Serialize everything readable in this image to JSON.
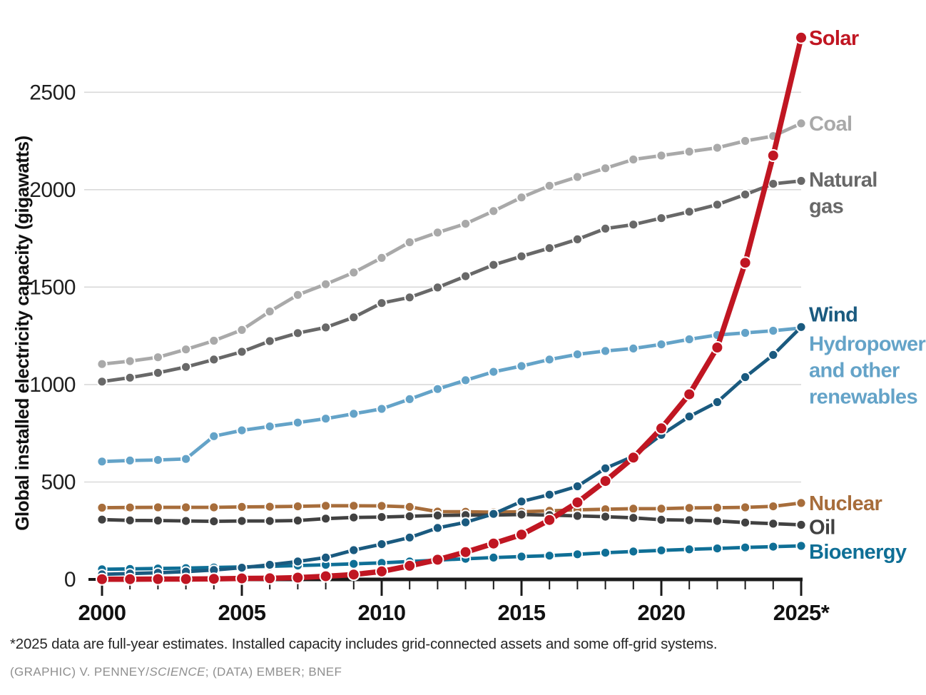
{
  "footnote": "*2025 data are full-year estimates. Installed capacity includes grid-connected assets and some off-grid systems.",
  "credit": {
    "prefix": "(GRAPHIC) V. PENNEY/",
    "italic": "SCIENCE",
    "suffix": "; (DATA) EMBER; BNEF"
  },
  "chart_data": {
    "type": "line",
    "title": "",
    "xlabel": "",
    "ylabel": "Global installed electricity capacity (gigawatts)",
    "x": [
      2000,
      2001,
      2002,
      2003,
      2004,
      2005,
      2006,
      2007,
      2008,
      2009,
      2010,
      2011,
      2012,
      2013,
      2014,
      2015,
      2016,
      2017,
      2018,
      2019,
      2020,
      2021,
      2022,
      2023,
      2024,
      2025
    ],
    "x_major_ticks": [
      2000,
      2005,
      2010,
      2015,
      2020,
      2025
    ],
    "x_major_tick_labels": [
      "2000",
      "2005",
      "2010",
      "2015",
      "2020",
      "2025*"
    ],
    "y_ticks": [
      0,
      500,
      1000,
      1500,
      2000,
      2500
    ],
    "ylim": [
      0,
      2850
    ],
    "grid": "horizontal-only",
    "legend_position": "right-of-line-ends",
    "units": "gigawatts",
    "axis_color": "#1a1a1a",
    "gridline_color": "#d9d9d9",
    "series": [
      {
        "name": "Coal",
        "color": "#a9a9a9",
        "label_lines": [
          "Coal"
        ],
        "label_dy": 10,
        "values": [
          1105,
          1120,
          1140,
          1180,
          1225,
          1280,
          1375,
          1460,
          1515,
          1575,
          1650,
          1730,
          1780,
          1825,
          1890,
          1960,
          2020,
          2065,
          2110,
          2155,
          2175,
          2195,
          2215,
          2250,
          2275,
          2340
        ]
      },
      {
        "name": "Natural gas",
        "color": "#686868",
        "label_lines": [
          "Natural",
          "gas"
        ],
        "label_dy": 8,
        "values": [
          1015,
          1035,
          1060,
          1090,
          1128,
          1168,
          1223,
          1264,
          1293,
          1345,
          1418,
          1447,
          1498,
          1556,
          1614,
          1658,
          1700,
          1745,
          1800,
          1821,
          1854,
          1887,
          1923,
          1975,
          2030,
          2045
        ]
      },
      {
        "name": "Hydropower and other renewables",
        "color": "#64a3c8",
        "label_lines": [
          "Hydropower",
          "and other",
          "renewables"
        ],
        "label_dy": 32,
        "values": [
          605,
          610,
          613,
          618,
          735,
          765,
          785,
          805,
          825,
          850,
          875,
          925,
          977,
          1022,
          1065,
          1095,
          1128,
          1155,
          1172,
          1185,
          1206,
          1232,
          1254,
          1265,
          1276,
          1290
        ]
      },
      {
        "name": "Nuclear",
        "color": "#a76d3b",
        "label_lines": [
          "Nuclear"
        ],
        "label_dy": 10,
        "values": [
          368,
          369,
          370,
          370,
          370,
          372,
          373,
          375,
          378,
          378,
          377,
          372,
          348,
          347,
          345,
          347,
          352,
          357,
          360,
          363,
          363,
          367,
          368,
          370,
          375,
          392
        ]
      },
      {
        "name": "Oil",
        "color": "#414141",
        "label_lines": [
          "Oil"
        ],
        "label_dy": 13,
        "values": [
          307,
          303,
          302,
          300,
          298,
          300,
          300,
          302,
          312,
          318,
          320,
          324,
          328,
          330,
          330,
          333,
          330,
          326,
          322,
          316,
          306,
          304,
          300,
          292,
          286,
          280
        ]
      },
      {
        "name": "Bioenergy",
        "color": "#0f6f96",
        "label_lines": [
          "Bioenergy"
        ],
        "label_dy": 18,
        "values": [
          52,
          54,
          56,
          58,
          61,
          64,
          67,
          71,
          75,
          80,
          85,
          92,
          99,
          106,
          112,
          117,
          122,
          129,
          137,
          143,
          149,
          154,
          159,
          164,
          168,
          172
        ]
      },
      {
        "name": "Wind",
        "color": "#1a5a7f",
        "label_lines": [
          "Wind"
        ],
        "label_dy": -8,
        "values": [
          26,
          30,
          34,
          40,
          48,
          60,
          75,
          92,
          112,
          150,
          181,
          215,
          264,
          293,
          336,
          400,
          435,
          478,
          570,
          632,
          742,
          836,
          910,
          1038,
          1152,
          1295
        ]
      },
      {
        "name": "Solar",
        "color": "#c01622",
        "label_lines": [
          "Solar"
        ],
        "label_dy": 10,
        "emphasis": true,
        "values": [
          1,
          1,
          2,
          2,
          3,
          5,
          6,
          9,
          16,
          25,
          41,
          70,
          101,
          140,
          184,
          230,
          305,
          395,
          505,
          625,
          775,
          950,
          1190,
          1625,
          2175,
          2780
        ]
      }
    ]
  }
}
